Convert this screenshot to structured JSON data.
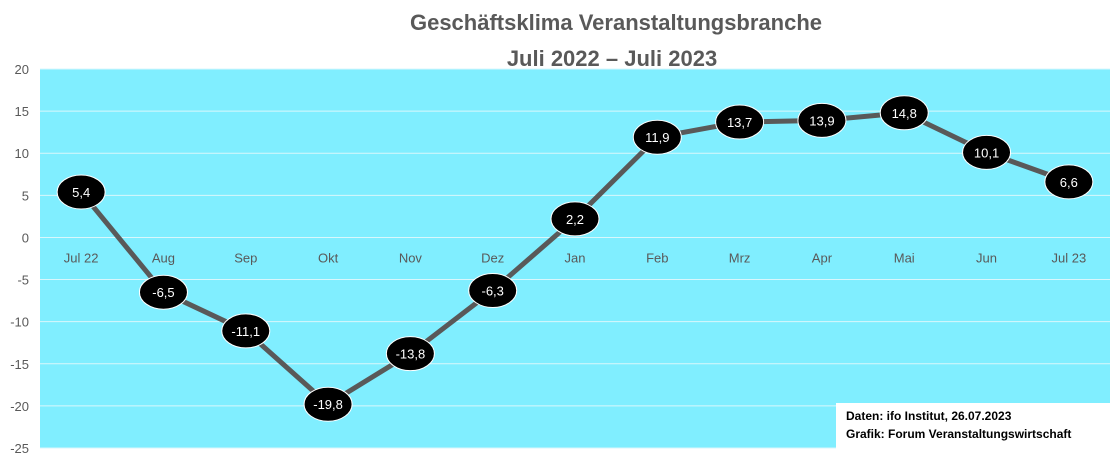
{
  "chart_data": {
    "type": "line",
    "title_lines": [
      "Geschäftsklima Veranstaltungsbranche",
      "Juli 2022 – Juli 2023"
    ],
    "categories": [
      "Jul 22",
      "Aug",
      "Sep",
      "Okt",
      "Nov",
      "Dez",
      "Jan",
      "Feb",
      "Mrz",
      "Apr",
      "Mai",
      "Jun",
      "Jul 23"
    ],
    "values": [
      5.4,
      -6.5,
      -11.1,
      -19.8,
      -13.8,
      -6.3,
      2.2,
      11.9,
      13.7,
      13.9,
      14.8,
      10.1,
      6.6
    ],
    "value_labels": [
      "5,4",
      "-6,5",
      "-11,1",
      "-19,8",
      "-13,8",
      "-6,3",
      "2,2",
      "11,9",
      "13,7",
      "13,9",
      "14,8",
      "10,1",
      "6,6"
    ],
    "yticks": [
      "20",
      "15",
      "10",
      "5",
      "0",
      "-5",
      "-10",
      "-15",
      "-20",
      "-25"
    ],
    "ylim": [
      -25,
      20
    ],
    "grid": true,
    "colors": {
      "plot_background": "#80EEFF",
      "line": "#595959",
      "marker": "#000000",
      "marker_text": "#FFFFFF",
      "gridline": "#D9F7FC"
    }
  },
  "source": {
    "line1": "Daten: ifo Institut, 26.07.2023",
    "line2": "Grafik: Forum Veranstaltungswirtschaft"
  }
}
